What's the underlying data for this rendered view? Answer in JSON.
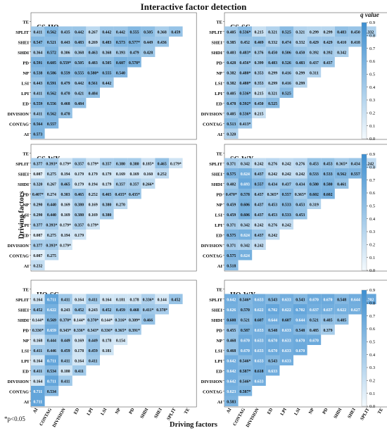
{
  "figure_title": "Interactive factor detection",
  "ylabel": "Driving factors",
  "xlabel": "Driving factors",
  "footnote": "*p<0.05",
  "colorbar": {
    "label": "q value",
    "min": 0.0,
    "max": 0.9,
    "ticks": [
      "0.0",
      "0.1",
      "0.2",
      "0.3",
      "0.4",
      "0.5",
      "0.6",
      "0.7",
      "0.8",
      "0.9"
    ],
    "color_low": "#f3f9fd",
    "color_high": "#3d8fd1"
  },
  "chart_data": [
    {
      "type": "heatmap",
      "title": "CS-HQ",
      "factors": [
        "AI",
        "CONTAG",
        "DIVISION",
        "ED",
        "LPI",
        "LSI",
        "NP",
        "PD",
        "SHDI",
        "SHEI",
        "SPLIT",
        "TE"
      ],
      "cells": [
        [
          "0.573",
          "",
          "",
          "",
          "",
          "",
          "",
          "",
          "",
          "",
          "",
          ""
        ],
        [
          "0.564",
          "0.557",
          "",
          "",
          "",
          "",
          "",
          "",
          "",
          "",
          "",
          ""
        ],
        [
          "0.411",
          "0.562",
          "0.470",
          "",
          "",
          "",
          "",
          "",
          "",
          "",
          "",
          ""
        ],
        [
          "0.559",
          "0.556",
          "0.468",
          "0.484",
          "",
          "",
          "",
          "",
          "",
          "",
          "",
          ""
        ],
        [
          "0.411",
          "0.562",
          "0.470",
          "0.421",
          "0.484",
          "",
          "",
          "",
          "",
          "",
          "",
          ""
        ],
        [
          "0.443",
          "0.591",
          "0.479",
          "0.442",
          "0.561",
          "0.442",
          "",
          "",
          "",
          "",
          "",
          ""
        ],
        [
          "0.538",
          "0.586",
          "0.559",
          "0.555",
          "0.580*",
          "0.555",
          "0.540",
          "",
          "",
          "",
          "",
          ""
        ],
        [
          "0.591",
          "0.605",
          "0.559*",
          "0.505",
          "0.483",
          "0.505",
          "0.607",
          "0.578*",
          "",
          "",
          "",
          ""
        ],
        [
          "0.364",
          "0.572",
          "0.306",
          "0.368",
          "0.463",
          "0.368",
          "0.393",
          "0.479",
          "0.428",
          "",
          "",
          ""
        ],
        [
          "0.547",
          "0.521",
          "0.443",
          "0.483",
          "0.269",
          "0.483",
          "0.573",
          "0.577*",
          "0.449",
          "0.436",
          "",
          ""
        ],
        [
          "0.411",
          "0.562",
          "0.435",
          "0.442",
          "0.267",
          "0.442",
          "0.442",
          "0.555",
          "0.505",
          "0.368",
          "0.459",
          ""
        ]
      ]
    },
    {
      "type": "heatmap",
      "title": "CS-SC",
      "factors": [
        "AI",
        "CONTAG",
        "DIVISION",
        "ED",
        "LPI",
        "LSI",
        "NP",
        "PD",
        "SHDI",
        "SHEI",
        "SPLIT",
        "TE"
      ],
      "cells": [
        [
          "0.320",
          "",
          "",
          "",
          "",
          "",
          "",
          "",
          "",
          "",
          "",
          ""
        ],
        [
          "0.513",
          "0.413*",
          "",
          "",
          "",
          "",
          "",
          "",
          "",
          "",
          "",
          ""
        ],
        [
          "0.405",
          "0.536*",
          "0.215",
          "",
          "",
          "",
          "",
          "",
          "",
          "",
          "",
          ""
        ],
        [
          "0.478",
          "0.592*",
          "0.450",
          "0.525",
          "",
          "",
          "",
          "",
          "",
          "",
          "",
          ""
        ],
        [
          "0.405",
          "0.536*",
          "0.215",
          "0.321",
          "0.525",
          "",
          "",
          "",
          "",
          "",
          "",
          ""
        ],
        [
          "0.382",
          "0.480*",
          "0.353",
          "0.299",
          "0.416",
          "0.299",
          "",
          "",
          "",
          "",
          "",
          ""
        ],
        [
          "0.382",
          "0.480*",
          "0.353",
          "0.299",
          "0.416",
          "0.299",
          "0.311",
          "",
          "",
          "",
          "",
          ""
        ],
        [
          "0.428",
          "0.456*",
          "0.399",
          "0.483",
          "0.526",
          "0.483",
          "0.437",
          "0.437",
          "",
          "",
          "",
          ""
        ],
        [
          "0.403",
          "0.483*",
          "0.376",
          "0.450",
          "0.506",
          "0.450",
          "0.392",
          "0.392",
          "0.342",
          "",
          "",
          ""
        ],
        [
          "0.385",
          "0.452",
          "0.469",
          "0.332",
          "0.474",
          "0.332",
          "0.429",
          "0.429",
          "0.410",
          "0.418",
          ""
        ],
        [
          "0.405",
          "0.536*",
          "0.215",
          "0.321",
          "0.525",
          "0.321",
          "0.299",
          "0.299",
          "0.483",
          "0.450",
          "0.332"
        ]
      ]
    },
    {
      "type": "heatmap",
      "title": "CS-WY",
      "factors": [
        "AI",
        "CONTAG",
        "DIVISION",
        "ED",
        "LPI",
        "LSI",
        "NP",
        "PD",
        "SHDI",
        "SHEI",
        "SPLIT",
        "TE"
      ],
      "cells": [
        [
          "0.232",
          "",
          "",
          "",
          "",
          "",
          "",
          "",
          "",
          "",
          "",
          ""
        ],
        [
          "0.087",
          "0.275",
          "",
          "",
          "",
          "",
          "",
          "",
          "",
          "",
          "",
          ""
        ],
        [
          "0.377",
          "0.393*",
          "0.179*",
          "",
          "",
          "",
          "",
          "",
          "",
          "",
          "",
          ""
        ],
        [
          "0.087",
          "0.275",
          "0.194",
          "0.179",
          "",
          "",
          "",
          "",
          "",
          "",
          "",
          ""
        ],
        [
          "0.377",
          "0.393*",
          "0.179*",
          "0.357",
          "0.179*",
          "",
          "",
          "",
          "",
          "",
          "",
          ""
        ],
        [
          "0.290",
          "0.440",
          "0.169",
          "0.380",
          "0.169",
          "0.380",
          "",
          "",
          "",
          "",
          "",
          ""
        ],
        [
          "0.290",
          "0.440",
          "0.169",
          "0.380",
          "0.169",
          "0.380",
          "0.270",
          "",
          "",
          "",
          "",
          ""
        ],
        [
          "0.407*",
          "0.274",
          "0.383",
          "0.465",
          "0.252",
          "0.465",
          "0.435*",
          "0.435*",
          "",
          "",
          "",
          ""
        ],
        [
          "0.320",
          "0.267",
          "0.465",
          "0.179",
          "0.194",
          "0.179",
          "0.357",
          "0.357",
          "0.266*",
          "",
          "",
          ""
        ],
        [
          "0.087",
          "0.275",
          "0.194",
          "0.179",
          "0.179",
          "0.179",
          "0.169",
          "0.169",
          "0.160",
          "0.252",
          ""
        ],
        [
          "0.377",
          "0.393*",
          "0.179*",
          "0.357",
          "0.179*",
          "0.357",
          "0.380",
          "0.380",
          "0.185*",
          "0.465",
          "0.179*"
        ]
      ]
    },
    {
      "type": "heatmap",
      "title": "SC-WY",
      "factors": [
        "AI",
        "CONTAG",
        "DIVISION",
        "ED",
        "LPI",
        "LSI",
        "NP",
        "PD",
        "SHDI",
        "SHEI",
        "SPLIT",
        "TE"
      ],
      "cells": [
        [
          "0.518",
          "",
          "",
          "",
          "",
          "",
          "",
          "",
          "",
          "",
          "",
          ""
        ],
        [
          "0.575",
          "0.624",
          "",
          "",
          "",
          "",
          "",
          "",
          "",
          "",
          "",
          ""
        ],
        [
          "0.371",
          "0.342",
          "0.242",
          "",
          "",
          "",
          "",
          "",
          "",
          "",
          "",
          ""
        ],
        [
          "0.575",
          "0.624",
          "0.437",
          "0.242",
          "",
          "",
          "",
          "",
          "",
          "",
          "",
          ""
        ],
        [
          "0.371",
          "0.342",
          "0.242",
          "0.276",
          "0.242",
          "",
          "",
          "",
          "",
          "",
          "",
          ""
        ],
        [
          "0.459",
          "0.606",
          "0.437",
          "0.453",
          "0.533",
          "0.453",
          "",
          "",
          "",
          "",
          "",
          ""
        ],
        [
          "0.459",
          "0.606",
          "0.437",
          "0.453",
          "0.533",
          "0.453",
          "0.319",
          "",
          "",
          "",
          "",
          ""
        ],
        [
          "0.470*",
          "0.578",
          "0.437",
          "0.365*",
          "0.557",
          "0.365*",
          "0.602",
          "0.602",
          "",
          "",
          "",
          ""
        ],
        [
          "0.402",
          "0.693",
          "0.557",
          "0.434",
          "0.437",
          "0.434",
          "0.580",
          "0.580",
          "0.461",
          "",
          "",
          ""
        ],
        [
          "0.575",
          "0.624",
          "0.437",
          "0.242",
          "0.242",
          "0.242",
          "0.533",
          "0.533",
          "0.562",
          "0.557",
          ""
        ],
        [
          "0.371",
          "0.342",
          "0.242",
          "0.276",
          "0.242",
          "0.276",
          "0.453",
          "0.453",
          "0.365*",
          "0.434",
          "0.242"
        ]
      ]
    },
    {
      "type": "heatmap",
      "title": "HQ-SC",
      "factors": [
        "AI",
        "CONTAG",
        "DIVISION",
        "ED",
        "LPI",
        "LSI",
        "NP",
        "PD",
        "SHDI",
        "SHEI",
        "SPLIT",
        "TE"
      ],
      "cells": [
        [
          "0.711",
          "",
          "",
          "",
          "",
          "",
          "",
          "",
          "",
          "",
          "",
          ""
        ],
        [
          "0.711",
          "0.534",
          "",
          "",
          "",
          "",
          "",
          "",
          "",
          "",
          "",
          ""
        ],
        [
          "0.164",
          "0.711",
          "0.411",
          "",
          "",
          "",
          "",
          "",
          "",
          "",
          "",
          ""
        ],
        [
          "0.411",
          "0.534",
          "0.180",
          "0.411",
          "",
          "",
          "",
          "",
          "",
          "",
          "",
          ""
        ],
        [
          "0.164",
          "0.711",
          "0.411",
          "0.164",
          "0.411",
          "",
          "",
          "",
          "",
          "",
          "",
          ""
        ],
        [
          "0.411",
          "0.446",
          "0.459",
          "0.178",
          "0.459",
          "0.181",
          "",
          "",
          "",
          "",
          "",
          ""
        ],
        [
          "0.168",
          "0.444",
          "0.449",
          "0.169",
          "0.449",
          "0.178",
          "0.154",
          "",
          "",
          "",
          "",
          ""
        ],
        [
          "0.336*",
          "0.659",
          "0.343*",
          "0.336*",
          "0.343*",
          "0.336*",
          "0.365*",
          "0.391*",
          "",
          "",
          "",
          ""
        ],
        [
          "0.144*",
          "0.569",
          "0.370*",
          "0.144*",
          "0.370*",
          "0.144*",
          "0.316*",
          "0.309*",
          "0.466",
          "",
          "",
          ""
        ],
        [
          "0.452",
          "0.622",
          "0.243",
          "0.452",
          "0.243",
          "0.452",
          "0.459",
          "0.468",
          "0.411*",
          "0.378*",
          ""
        ],
        [
          "0.164",
          "0.711",
          "0.411",
          "0.164",
          "0.411",
          "0.164",
          "0.181",
          "0.178",
          "0.336*",
          "0.144",
          "0.452"
        ]
      ]
    },
    {
      "type": "heatmap",
      "title": "HQ-WY",
      "factors": [
        "AI",
        "CONTAG",
        "DIVISION",
        "ED",
        "LPI",
        "LSI",
        "NP",
        "PD",
        "SHDI",
        "SHEI",
        "SPLIT",
        "TE"
      ],
      "cells": [
        [
          "0.583",
          "",
          "",
          "",
          "",
          "",
          "",
          "",
          "",
          "",
          "",
          ""
        ],
        [
          "0.623",
          "0.587*",
          "",
          "",
          "",
          "",
          "",
          "",
          "",
          "",
          "",
          ""
        ],
        [
          "0.642",
          "0.546*",
          "0.633",
          "",
          "",
          "",
          "",
          "",
          "",
          "",
          "",
          ""
        ],
        [
          "0.642",
          "0.587*",
          "0.618",
          "0.633",
          "",
          "",
          "",
          "",
          "",
          "",
          "",
          ""
        ],
        [
          "0.642",
          "0.546*",
          "0.633",
          "0.543",
          "0.633",
          "",
          "",
          "",
          "",
          "",
          "",
          ""
        ],
        [
          "0.468",
          "0.670",
          "0.633",
          "0.670",
          "0.633",
          "0.670",
          "",
          "",
          "",
          "",
          "",
          ""
        ],
        [
          "0.468",
          "0.670",
          "0.633",
          "0.670",
          "0.633",
          "0.670",
          "0.670",
          "",
          "",
          "",
          "",
          ""
        ],
        [
          "0.455",
          "0.587",
          "0.633",
          "0.548",
          "0.633",
          "0.548",
          "0.485",
          "0.379",
          "",
          "",
          "",
          ""
        ],
        [
          "0.608",
          "0.521",
          "0.607",
          "0.644",
          "0.607",
          "0.644",
          "0.521",
          "0.485",
          "0.485",
          "",
          "",
          ""
        ],
        [
          "0.626",
          "0.570",
          "0.622",
          "0.702",
          "0.622",
          "0.702",
          "0.637",
          "0.637",
          "0.622",
          "0.627",
          ""
        ],
        [
          "0.642",
          "0.546*",
          "0.633",
          "0.543",
          "0.633",
          "0.543",
          "0.670",
          "0.670",
          "0.548",
          "0.644",
          "0.702"
        ]
      ]
    }
  ]
}
